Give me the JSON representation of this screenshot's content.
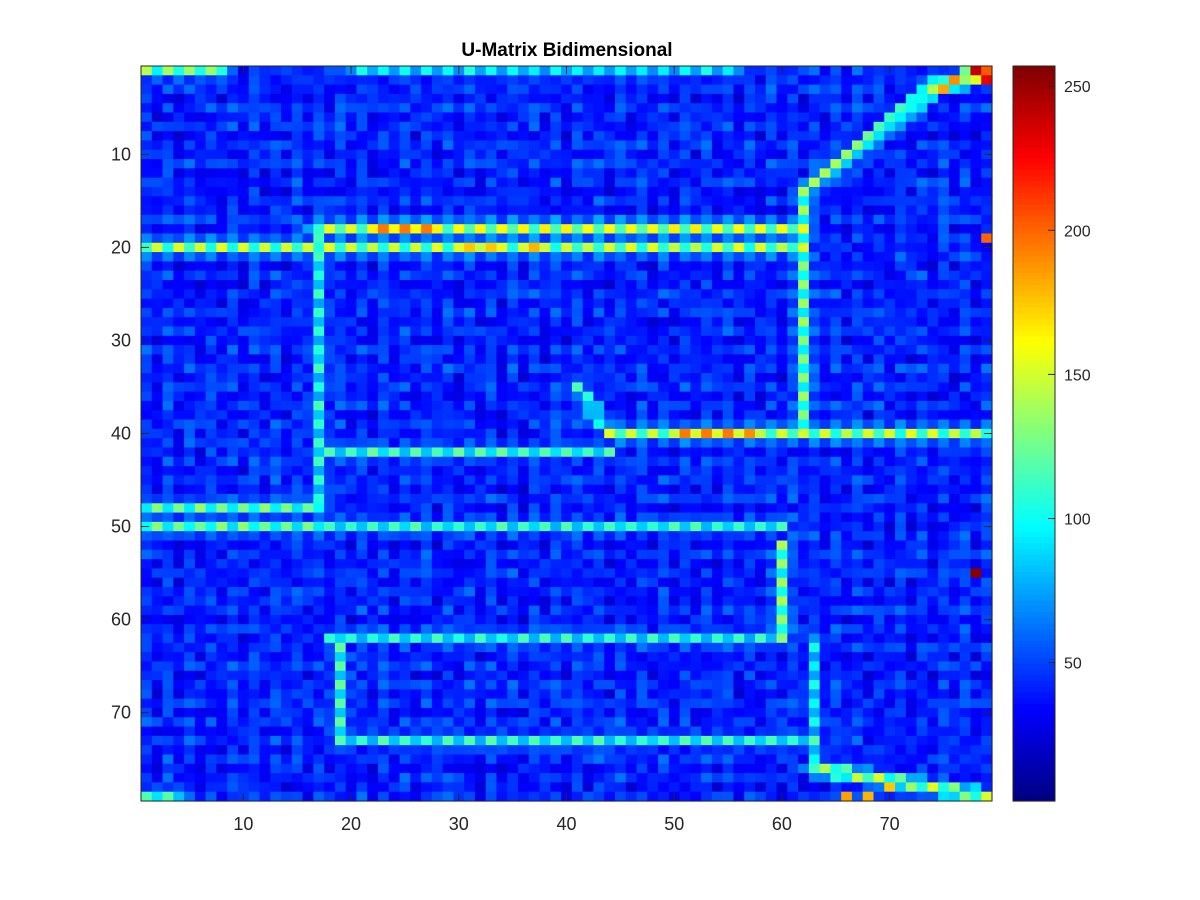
{
  "chart_data": {
    "type": "heatmap",
    "title": "U-Matrix Bidimensional",
    "xlabel": "",
    "ylabel": "",
    "grid": false,
    "colormap": "jet",
    "n_cols": 79,
    "n_rows": 79,
    "xlim": [
      0.5,
      79.5
    ],
    "ylim": [
      0.5,
      79.5
    ],
    "y_direction": "reversed",
    "x_ticks": [
      10,
      20,
      30,
      40,
      50,
      60,
      70
    ],
    "y_ticks": [
      10,
      20,
      30,
      40,
      50,
      60,
      70
    ],
    "colorbar": {
      "location": "right",
      "limits": [
        2,
        257
      ],
      "ticks": [
        50,
        100,
        150,
        200,
        250
      ]
    },
    "background_level": 35,
    "ridges": [
      {
        "from": [
          1,
          20
        ],
        "to": [
          62,
          20
        ],
        "level": 150
      },
      {
        "from": [
          17,
          18
        ],
        "to": [
          62,
          18
        ],
        "level": 160
      },
      {
        "from": [
          17,
          18
        ],
        "to": [
          17,
          47
        ],
        "level": 110
      },
      {
        "from": [
          62,
          14
        ],
        "to": [
          62,
          40
        ],
        "level": 135
      },
      {
        "from": [
          62,
          14
        ],
        "to": [
          74,
          3
        ],
        "level": 140
      },
      {
        "from": [
          74,
          3
        ],
        "to": [
          79,
          1
        ],
        "level": 200
      },
      {
        "from": [
          44,
          40
        ],
        "to": [
          79,
          40
        ],
        "level": 150
      },
      {
        "from": [
          18,
          42
        ],
        "to": [
          44,
          42
        ],
        "level": 120
      },
      {
        "from": [
          41,
          35
        ],
        "to": [
          44,
          40
        ],
        "level": 115
      },
      {
        "from": [
          1,
          48
        ],
        "to": [
          17,
          48
        ],
        "level": 130
      },
      {
        "from": [
          1,
          50
        ],
        "to": [
          17,
          50
        ],
        "level": 130
      },
      {
        "from": [
          18,
          50
        ],
        "to": [
          60,
          50
        ],
        "level": 115
      },
      {
        "from": [
          60,
          52
        ],
        "to": [
          60,
          62
        ],
        "level": 135
      },
      {
        "from": [
          18,
          62
        ],
        "to": [
          60,
          62
        ],
        "level": 110
      },
      {
        "from": [
          19,
          62
        ],
        "to": [
          19,
          73
        ],
        "level": 120
      },
      {
        "from": [
          19,
          73
        ],
        "to": [
          63,
          73
        ],
        "level": 115
      },
      {
        "from": [
          63,
          62
        ],
        "to": [
          63,
          76
        ],
        "level": 100
      },
      {
        "from": [
          63,
          76
        ],
        "to": [
          79,
          79
        ],
        "level": 150
      },
      {
        "from": [
          1,
          1
        ],
        "to": [
          8,
          1
        ],
        "level": 140
      },
      {
        "from": [
          20,
          1
        ],
        "to": [
          56,
          1
        ],
        "level": 100
      },
      {
        "from": [
          1,
          79
        ],
        "to": [
          4,
          79
        ],
        "level": 120
      }
    ],
    "peaks": [
      {
        "x": 78,
        "y": 1,
        "value": 240
      },
      {
        "x": 79,
        "y": 2,
        "value": 230
      },
      {
        "x": 78,
        "y": 55,
        "value": 255
      },
      {
        "x": 79,
        "y": 19,
        "value": 200
      },
      {
        "x": 23,
        "y": 18,
        "value": 195
      },
      {
        "x": 25,
        "y": 18,
        "value": 195
      },
      {
        "x": 27,
        "y": 18,
        "value": 195
      },
      {
        "x": 31,
        "y": 20,
        "value": 175
      },
      {
        "x": 33,
        "y": 20,
        "value": 175
      },
      {
        "x": 37,
        "y": 20,
        "value": 180
      },
      {
        "x": 51,
        "y": 40,
        "value": 195
      },
      {
        "x": 53,
        "y": 40,
        "value": 195
      },
      {
        "x": 55,
        "y": 40,
        "value": 195
      },
      {
        "x": 57,
        "y": 40,
        "value": 190
      },
      {
        "x": 66,
        "y": 79,
        "value": 185
      },
      {
        "x": 68,
        "y": 79,
        "value": 180
      },
      {
        "x": 70,
        "y": 78,
        "value": 175
      }
    ]
  }
}
